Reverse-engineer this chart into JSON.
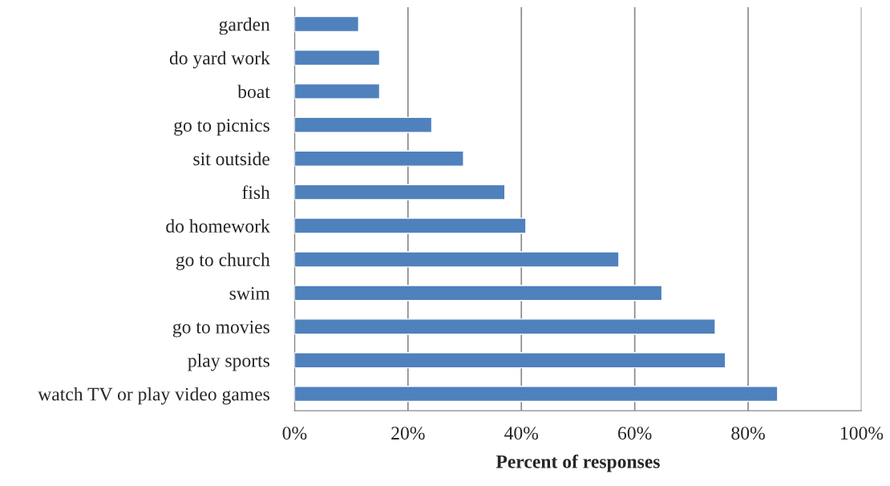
{
  "chart_data": {
    "type": "bar",
    "orientation": "horizontal",
    "categories": [
      "garden",
      "do yard work",
      "boat",
      "go to picnics",
      "sit outside",
      "fish",
      "do homework",
      "go to church",
      "swim",
      "go to movies",
      "play sports",
      "watch TV or play video games"
    ],
    "values": [
      11.3,
      15.0,
      15.0,
      24.2,
      29.8,
      37.1,
      40.8,
      57.2,
      64.8,
      74.2,
      76.0,
      85.2
    ],
    "color": "#4f81bd",
    "xlabel": "Percent of responses",
    "xlim": [
      0,
      100
    ],
    "xticks": [
      {
        "value": 0,
        "label": "0%"
      },
      {
        "value": 20,
        "label": "20%"
      },
      {
        "value": 40,
        "label": "40%"
      },
      {
        "value": 60,
        "label": "60%"
      },
      {
        "value": 80,
        "label": "80%"
      },
      {
        "value": 100,
        "label": "100%"
      }
    ],
    "grid": "x"
  }
}
